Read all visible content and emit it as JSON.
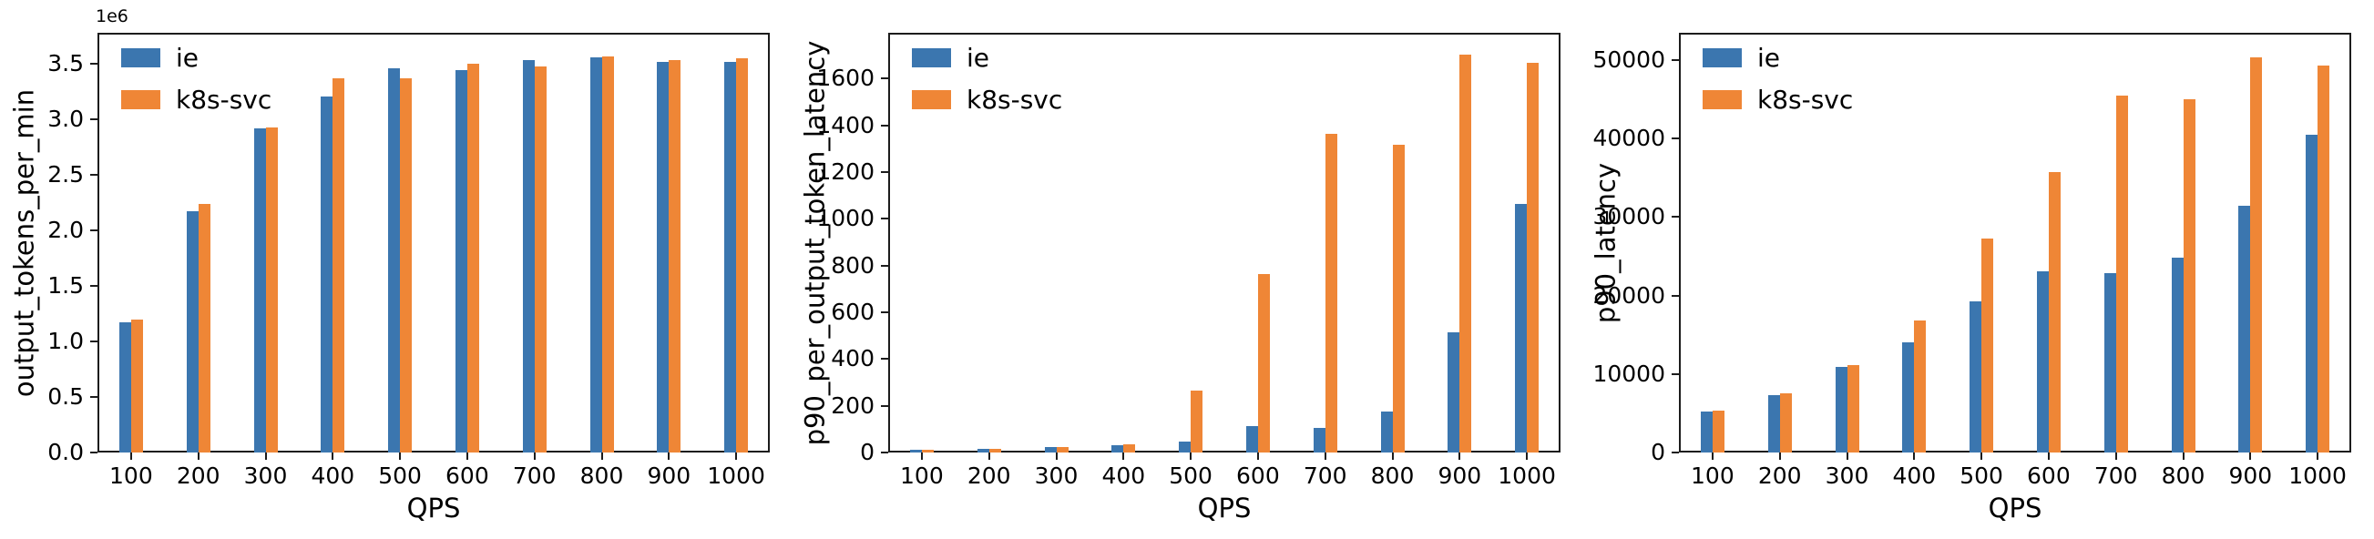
{
  "figure": {
    "background": "#ffffff",
    "series_colors": {
      "ie": "#3b76af",
      "k8s-svc": "#ef8636"
    },
    "spine_color": "#1c1c1c",
    "text_color": "#000000"
  },
  "legend": {
    "entries": [
      "ie",
      "k8s-svc"
    ],
    "position": "upper left"
  },
  "chart_data": [
    {
      "type": "bar",
      "title": "",
      "xlabel": "QPS",
      "ylabel": "output_tokens_per_min",
      "y_offset_text": "1e6",
      "grid": false,
      "categories": [
        "100",
        "200",
        "300",
        "400",
        "500",
        "600",
        "700",
        "800",
        "900",
        "1000"
      ],
      "yticks": [
        0,
        500000,
        1000000,
        1500000,
        2000000,
        2500000,
        3000000,
        3500000
      ],
      "ytick_labels": [
        "0.0",
        "0.5",
        "1.0",
        "1.5",
        "2.0",
        "2.5",
        "3.0",
        "3.5"
      ],
      "ylim": [
        0,
        3780000
      ],
      "series": [
        {
          "name": "ie",
          "values": [
            1170000,
            2170000,
            2920000,
            3210000,
            3460000,
            3440000,
            3530000,
            3560000,
            3520000,
            3520000
          ]
        },
        {
          "name": "k8s-svc",
          "values": [
            1200000,
            2240000,
            2930000,
            3370000,
            3370000,
            3500000,
            3480000,
            3570000,
            3530000,
            3550000
          ]
        }
      ]
    },
    {
      "type": "bar",
      "title": "",
      "xlabel": "QPS",
      "ylabel": "p90_per_output_token_latency",
      "y_offset_text": "",
      "grid": false,
      "categories": [
        "100",
        "200",
        "300",
        "400",
        "500",
        "600",
        "700",
        "800",
        "900",
        "1000"
      ],
      "yticks": [
        0,
        200,
        400,
        600,
        800,
        1000,
        1200,
        1400,
        1600
      ],
      "ytick_labels": [
        "0",
        "200",
        "400",
        "600",
        "800",
        "1000",
        "1200",
        "1400",
        "1600"
      ],
      "ylim": [
        0,
        1796
      ],
      "series": [
        {
          "name": "ie",
          "values": [
            10,
            17,
            24,
            32,
            45,
            113,
            105,
            175,
            513,
            1064
          ]
        },
        {
          "name": "k8s-svc",
          "values": [
            10,
            17,
            24,
            36,
            266,
            765,
            1365,
            1318,
            1702,
            1669
          ]
        }
      ]
    },
    {
      "type": "bar",
      "title": "",
      "xlabel": "QPS",
      "ylabel": "p90_latency",
      "y_offset_text": "",
      "grid": false,
      "categories": [
        "100",
        "200",
        "300",
        "400",
        "500",
        "600",
        "700",
        "800",
        "900",
        "1000"
      ],
      "yticks": [
        0,
        10000,
        20000,
        30000,
        40000,
        50000
      ],
      "ytick_labels": [
        "0",
        "10000",
        "20000",
        "30000",
        "40000",
        "50000"
      ],
      "ylim": [
        0,
        53500
      ],
      "series": [
        {
          "name": "ie",
          "values": [
            5200,
            7300,
            10900,
            14000,
            19300,
            23100,
            22900,
            24800,
            31400,
            40500
          ]
        },
        {
          "name": "k8s-svc",
          "values": [
            5300,
            7500,
            11100,
            16800,
            27300,
            35800,
            45500,
            45000,
            50400,
            49300
          ]
        }
      ]
    }
  ]
}
